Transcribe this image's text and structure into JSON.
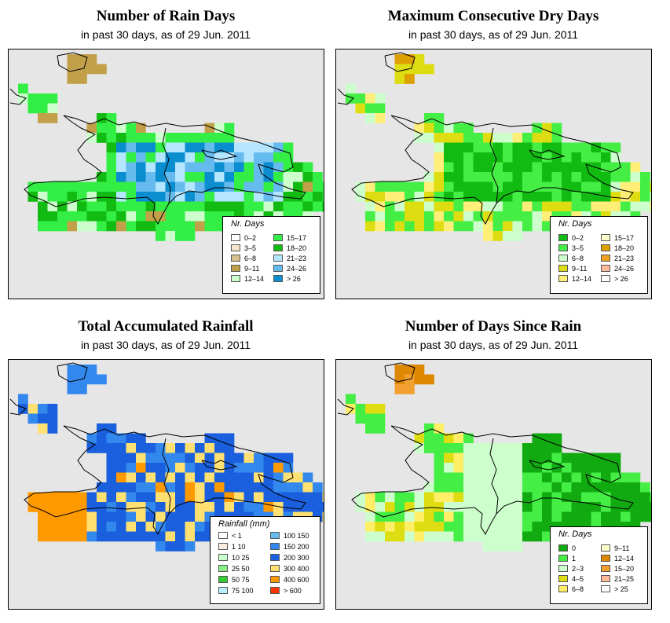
{
  "panels": [
    {
      "title": "Number of Rain Days",
      "subtitle": "in past 30 days, as of  29 Jun. 2011",
      "legend_title": "Nr. Days",
      "classes": [
        {
          "label": "0–2",
          "color": "#ffffff"
        },
        {
          "label": "3–5",
          "color": "#f2e5cc"
        },
        {
          "label": "6–8",
          "color": "#d9c08c"
        },
        {
          "label": "9–11",
          "color": "#c2a04a"
        },
        {
          "label": "12–14",
          "color": "#ccffcc"
        },
        {
          "label": "15–17",
          "color": "#33ee44"
        },
        {
          "label": "18–20",
          "color": "#11bb11"
        },
        {
          "label": "21–23",
          "color": "#b4e6ff"
        },
        {
          "label": "24–26",
          "color": "#66bbee"
        },
        {
          "label": "> 26",
          "color": "#0a8ed0"
        }
      ]
    },
    {
      "title": "Maximum Consecutive Dry Days",
      "subtitle": "in past 30 days, as of  29 Jun. 2011",
      "legend_title": "Nr. Days",
      "classes": [
        {
          "label": "0–2",
          "color": "#11bb11"
        },
        {
          "label": "3–5",
          "color": "#44ee44"
        },
        {
          "label": "6–8",
          "color": "#ccffcc"
        },
        {
          "label": "9–11",
          "color": "#dddd11"
        },
        {
          "label": "12–14",
          "color": "#ffee77"
        },
        {
          "label": "15–17",
          "color": "#ffffcc"
        },
        {
          "label": "18–20",
          "color": "#dda000"
        },
        {
          "label": "21–23",
          "color": "#f2a020"
        },
        {
          "label": "24–26",
          "color": "#ffbb99"
        },
        {
          "label": "> 26",
          "color": "#ffffff"
        }
      ]
    },
    {
      "title": "Total Accumulated Rainfall",
      "subtitle": "in past 30 days, as of  29 Jun. 2011",
      "legend_title": "Rainfall (mm)",
      "classes": [
        {
          "label": "< 1",
          "color": "#ffffff"
        },
        {
          "label": "1   10",
          "color": "#ffeedd"
        },
        {
          "label": "10   25",
          "color": "#ccffcc"
        },
        {
          "label": "25   50",
          "color": "#88ee88"
        },
        {
          "label": "50   75",
          "color": "#33cc33"
        },
        {
          "label": "75   100",
          "color": "#bbeeff"
        },
        {
          "label": "100   150",
          "color": "#66bbee"
        },
        {
          "label": "150   200",
          "color": "#3388ee"
        },
        {
          "label": "200   300",
          "color": "#1a5fdd"
        },
        {
          "label": "300   400",
          "color": "#ffe070"
        },
        {
          "label": "400   600",
          "color": "#ff9900"
        },
        {
          "label": "> 600",
          "color": "#ff3300"
        }
      ]
    },
    {
      "title": "Number of Days Since Rain",
      "subtitle": "in past 30 days, as of  29 Jun. 2011",
      "legend_title": "Nr. Days",
      "classes": [
        {
          "label": "0",
          "color": "#11aa11"
        },
        {
          "label": "1",
          "color": "#44ee44"
        },
        {
          "label": "2–3",
          "color": "#ccffcc"
        },
        {
          "label": "4–5",
          "color": "#dddd11"
        },
        {
          "label": "6–8",
          "color": "#ffee66"
        },
        {
          "label": "9–11",
          "color": "#ffffcc"
        },
        {
          "label": "12–14",
          "color": "#dd8800"
        },
        {
          "label": "15–20",
          "color": "#f2a030"
        },
        {
          "label": "21–25",
          "color": "#ffbb99"
        },
        {
          "label": "> 25",
          "color": "#ffffff"
        }
      ]
    }
  ]
}
